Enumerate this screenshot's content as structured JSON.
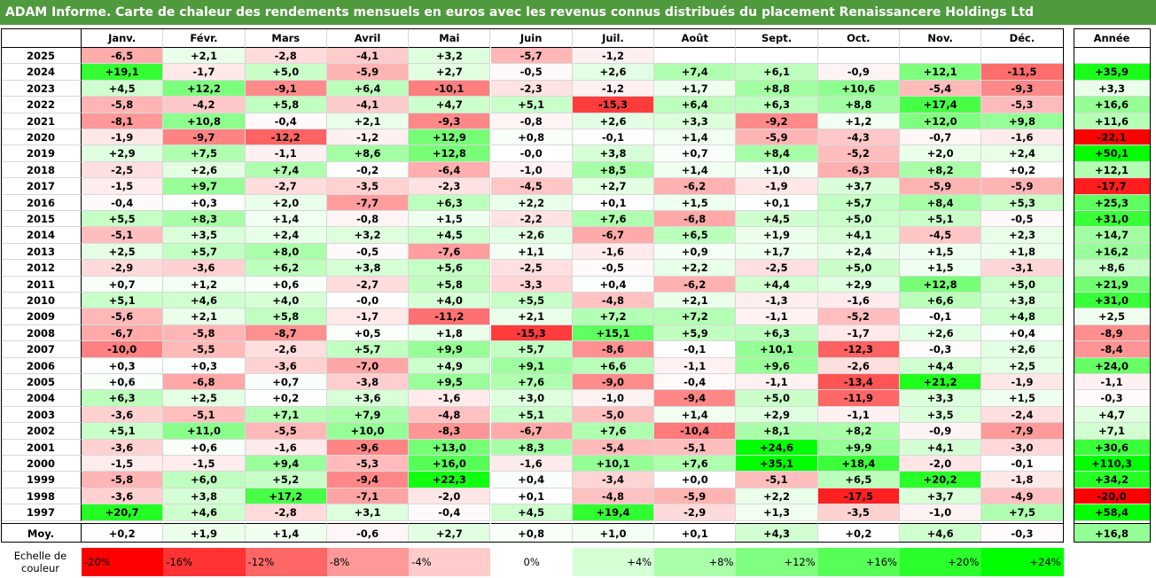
{
  "title": "ADAM Informe. Carte de chaleur des rendements mensuels en euros avec les revenus connus distribués du placement Renaissancere Holdings Ltd",
  "chart_data": {
    "type": "heatmap",
    "title": "ADAM Informe. Carte de chaleur des rendements mensuels en euros avec les revenus connus distribués du placement Renaissancere Holdings Ltd",
    "months": [
      "Janv.",
      "Févr.",
      "Mars",
      "Avril",
      "Mai",
      "Juin",
      "Juil.",
      "Août",
      "Sept.",
      "Oct.",
      "Nov.",
      "Déc."
    ],
    "annual_header": "Année",
    "rows": [
      {
        "year": "2025",
        "values": [
          "-6,5",
          "+2,1",
          "-2,8",
          "-4,1",
          "+3,2",
          "-5,7",
          "-1,2",
          "",
          "",
          "",
          "",
          ""
        ],
        "annual": ""
      },
      {
        "year": "2024",
        "values": [
          "+19,1",
          "-1,7",
          "+5,0",
          "-5,9",
          "+2,7",
          "-0,5",
          "+2,6",
          "+7,4",
          "+6,1",
          "-0,9",
          "+12,1",
          "-11,5"
        ],
        "annual": "+35,9"
      },
      {
        "year": "2023",
        "values": [
          "+4,5",
          "+12,2",
          "-9,1",
          "+6,4",
          "-10,1",
          "-2,3",
          "-1,2",
          "+1,7",
          "+8,8",
          "+10,6",
          "-5,4",
          "-9,3"
        ],
        "annual": "+3,3"
      },
      {
        "year": "2022",
        "values": [
          "-5,8",
          "-4,2",
          "+5,8",
          "-4,1",
          "+4,7",
          "+5,1",
          "-15,3",
          "+6,4",
          "+6,3",
          "+8,8",
          "+17,4",
          "-5,3"
        ],
        "annual": "+16,6"
      },
      {
        "year": "2021",
        "values": [
          "-8,1",
          "+10,8",
          "-0,4",
          "+2,1",
          "-9,3",
          "-0,8",
          "+2,6",
          "+3,3",
          "-9,2",
          "+1,2",
          "+12,0",
          "+9,8"
        ],
        "annual": "+11,6"
      },
      {
        "year": "2020",
        "values": [
          "-1,9",
          "-9,7",
          "-12,2",
          "-1,2",
          "+12,9",
          "+0,8",
          "-0,1",
          "+1,4",
          "-5,9",
          "-4,3",
          "-0,7",
          "-1,6"
        ],
        "annual": "-22,1"
      },
      {
        "year": "2019",
        "values": [
          "+2,9",
          "+7,5",
          "-1,1",
          "+8,6",
          "+12,8",
          "-0,0",
          "+3,8",
          "+0,7",
          "+8,4",
          "-5,2",
          "+2,0",
          "+2,4"
        ],
        "annual": "+50,1"
      },
      {
        "year": "2018",
        "values": [
          "-2,5",
          "+2,6",
          "+7,4",
          "-0,2",
          "-6,4",
          "-1,0",
          "+8,5",
          "+1,4",
          "+1,0",
          "-6,3",
          "+8,2",
          "+0,2"
        ],
        "annual": "+12,1"
      },
      {
        "year": "2017",
        "values": [
          "-1,5",
          "+9,7",
          "-2,7",
          "-3,5",
          "-2,3",
          "-4,5",
          "+2,7",
          "-6,2",
          "-1,9",
          "+3,7",
          "-5,9",
          "-5,9"
        ],
        "annual": "-17,7"
      },
      {
        "year": "2016",
        "values": [
          "-0,4",
          "+0,3",
          "+2,0",
          "-7,7",
          "+6,3",
          "+2,2",
          "+0,1",
          "+1,5",
          "+0,1",
          "+5,7",
          "+8,4",
          "+5,3"
        ],
        "annual": "+25,3"
      },
      {
        "year": "2015",
        "values": [
          "+5,5",
          "+8,3",
          "+1,4",
          "-0,8",
          "+1,5",
          "-2,2",
          "+7,6",
          "-6,8",
          "+4,5",
          "+5,0",
          "+5,1",
          "-0,5"
        ],
        "annual": "+31,0"
      },
      {
        "year": "2014",
        "values": [
          "-5,1",
          "+3,5",
          "+2,4",
          "+3,2",
          "+4,5",
          "+2,6",
          "-6,7",
          "+6,5",
          "+1,9",
          "+4,1",
          "-4,5",
          "+2,3"
        ],
        "annual": "+14,7"
      },
      {
        "year": "2013",
        "values": [
          "+2,5",
          "+5,7",
          "+8,0",
          "-0,5",
          "-7,6",
          "+1,1",
          "-1,6",
          "+0,9",
          "+1,7",
          "+2,4",
          "+1,5",
          "+1,8"
        ],
        "annual": "+16,2"
      },
      {
        "year": "2012",
        "values": [
          "-2,9",
          "-3,6",
          "+6,2",
          "+3,8",
          "+5,6",
          "-2,5",
          "-0,5",
          "+2,2",
          "-2,5",
          "+5,0",
          "+1,5",
          "-3,1"
        ],
        "annual": "+8,6"
      },
      {
        "year": "2011",
        "values": [
          "+0,7",
          "+1,2",
          "+0,6",
          "-2,7",
          "+5,8",
          "-3,3",
          "+0,4",
          "-6,2",
          "+4,4",
          "+2,9",
          "+12,8",
          "+5,0"
        ],
        "annual": "+21,9"
      },
      {
        "year": "2010",
        "values": [
          "+5,1",
          "+4,6",
          "+4,0",
          "-0,0",
          "+4,0",
          "+5,5",
          "-4,8",
          "+2,1",
          "-1,3",
          "-1,6",
          "+6,6",
          "+3,8"
        ],
        "annual": "+31,0"
      },
      {
        "year": "2009",
        "values": [
          "-5,6",
          "+2,1",
          "+5,8",
          "-1,7",
          "-11,2",
          "+2,1",
          "+7,2",
          "+7,2",
          "-1,1",
          "-5,2",
          "-0,1",
          "+4,8"
        ],
        "annual": "+2,5"
      },
      {
        "year": "2008",
        "values": [
          "-6,7",
          "-5,8",
          "-8,7",
          "+0,5",
          "+1,8",
          "-15,3",
          "+15,1",
          "+5,9",
          "+6,3",
          "-1,7",
          "+2,6",
          "+0,4"
        ],
        "annual": "-8,9"
      },
      {
        "year": "2007",
        "values": [
          "-10,0",
          "-5,5",
          "-2,6",
          "+5,7",
          "+9,9",
          "+5,7",
          "-8,6",
          "-0,1",
          "+10,1",
          "-12,3",
          "-0,3",
          "+2,6"
        ],
        "annual": "-8,4"
      },
      {
        "year": "2006",
        "values": [
          "+0,3",
          "+0,3",
          "-3,6",
          "-7,0",
          "+4,9",
          "+9,1",
          "+6,6",
          "-1,1",
          "+9,6",
          "-2,6",
          "+4,4",
          "+2,5"
        ],
        "annual": "+24,0"
      },
      {
        "year": "2005",
        "values": [
          "+0,6",
          "-6,8",
          "+0,7",
          "-3,8",
          "+9,5",
          "+7,6",
          "-9,0",
          "-0,4",
          "-1,1",
          "-13,4",
          "+21,2",
          "-1,9"
        ],
        "annual": "-1,1"
      },
      {
        "year": "2004",
        "values": [
          "+6,3",
          "+2,5",
          "+0,2",
          "+3,6",
          "-1,6",
          "+3,0",
          "-1,0",
          "-9,4",
          "+5,0",
          "-11,9",
          "+3,3",
          "+1,5"
        ],
        "annual": "-0,3"
      },
      {
        "year": "2003",
        "values": [
          "-3,6",
          "-5,1",
          "+7,1",
          "+7,9",
          "-4,8",
          "+5,1",
          "-5,0",
          "+1,4",
          "+2,9",
          "-1,1",
          "+3,5",
          "-2,4"
        ],
        "annual": "+4,7"
      },
      {
        "year": "2002",
        "values": [
          "+5,1",
          "+11,0",
          "-5,5",
          "+10,0",
          "-8,3",
          "-6,7",
          "+7,6",
          "-10,4",
          "+8,1",
          "+8,2",
          "-0,9",
          "-7,9"
        ],
        "annual": "+7,1"
      },
      {
        "year": "2001",
        "values": [
          "-3,6",
          "+0,6",
          "-1,6",
          "-9,6",
          "+13,0",
          "+8,3",
          "-5,4",
          "-5,1",
          "+24,6",
          "+9,9",
          "+4,1",
          "-3,0"
        ],
        "annual": "+30,6"
      },
      {
        "year": "2000",
        "values": [
          "-1,5",
          "-1,5",
          "+9,4",
          "-5,3",
          "+16,0",
          "-1,6",
          "+10,1",
          "+7,6",
          "+35,1",
          "+18,4",
          "-2,0",
          "-0,1"
        ],
        "annual": "+110,3"
      },
      {
        "year": "1999",
        "values": [
          "-5,8",
          "+6,0",
          "+5,2",
          "-9,4",
          "+22,3",
          "+0,4",
          "-3,4",
          "+0,0",
          "-5,1",
          "+6,5",
          "+20,2",
          "-1,8"
        ],
        "annual": "+34,2"
      },
      {
        "year": "1998",
        "values": [
          "-3,6",
          "+3,8",
          "+17,2",
          "-7,1",
          "-2,0",
          "+0,1",
          "-4,8",
          "-5,9",
          "+2,2",
          "-17,5",
          "+3,7",
          "-4,9"
        ],
        "annual": "-20,0"
      },
      {
        "year": "1997",
        "values": [
          "+20,7",
          "+4,6",
          "-2,8",
          "+3,1",
          "-0,4",
          "+4,5",
          "+19,4",
          "-2,9",
          "+1,3",
          "-3,5",
          "-1,0",
          "+7,5"
        ],
        "annual": "+58,4"
      }
    ],
    "average": {
      "label": "Moy.",
      "values": [
        "+0,2",
        "+1,9",
        "+1,4",
        "-0,6",
        "+2,7",
        "+0,8",
        "+1,0",
        "+0,1",
        "+4,3",
        "+0,2",
        "+4,6",
        "-0,3"
      ],
      "annual": "+16,8"
    },
    "scale": {
      "label_line1": "Echelle de",
      "label_line2": "couleur",
      "items": [
        {
          "label": "-20%",
          "value": -20
        },
        {
          "label": "-16%",
          "value": -16
        },
        {
          "label": "-12%",
          "value": -12
        },
        {
          "label": "-8%",
          "value": -8
        },
        {
          "label": "-4%",
          "value": -4
        },
        {
          "label": "0%",
          "value": 0
        },
        {
          "label": "+4%",
          "value": 4
        },
        {
          "label": "+8%",
          "value": 8
        },
        {
          "label": "+12%",
          "value": 12
        },
        {
          "label": "+16%",
          "value": 16
        },
        {
          "label": "+20%",
          "value": 20
        },
        {
          "label": "+24%",
          "value": 24
        }
      ]
    },
    "colors": {
      "negative_max": "#ff0000",
      "neutral": "#ffffff",
      "positive_max": "#00ff00",
      "title_bg": "#4f9a3d"
    }
  }
}
